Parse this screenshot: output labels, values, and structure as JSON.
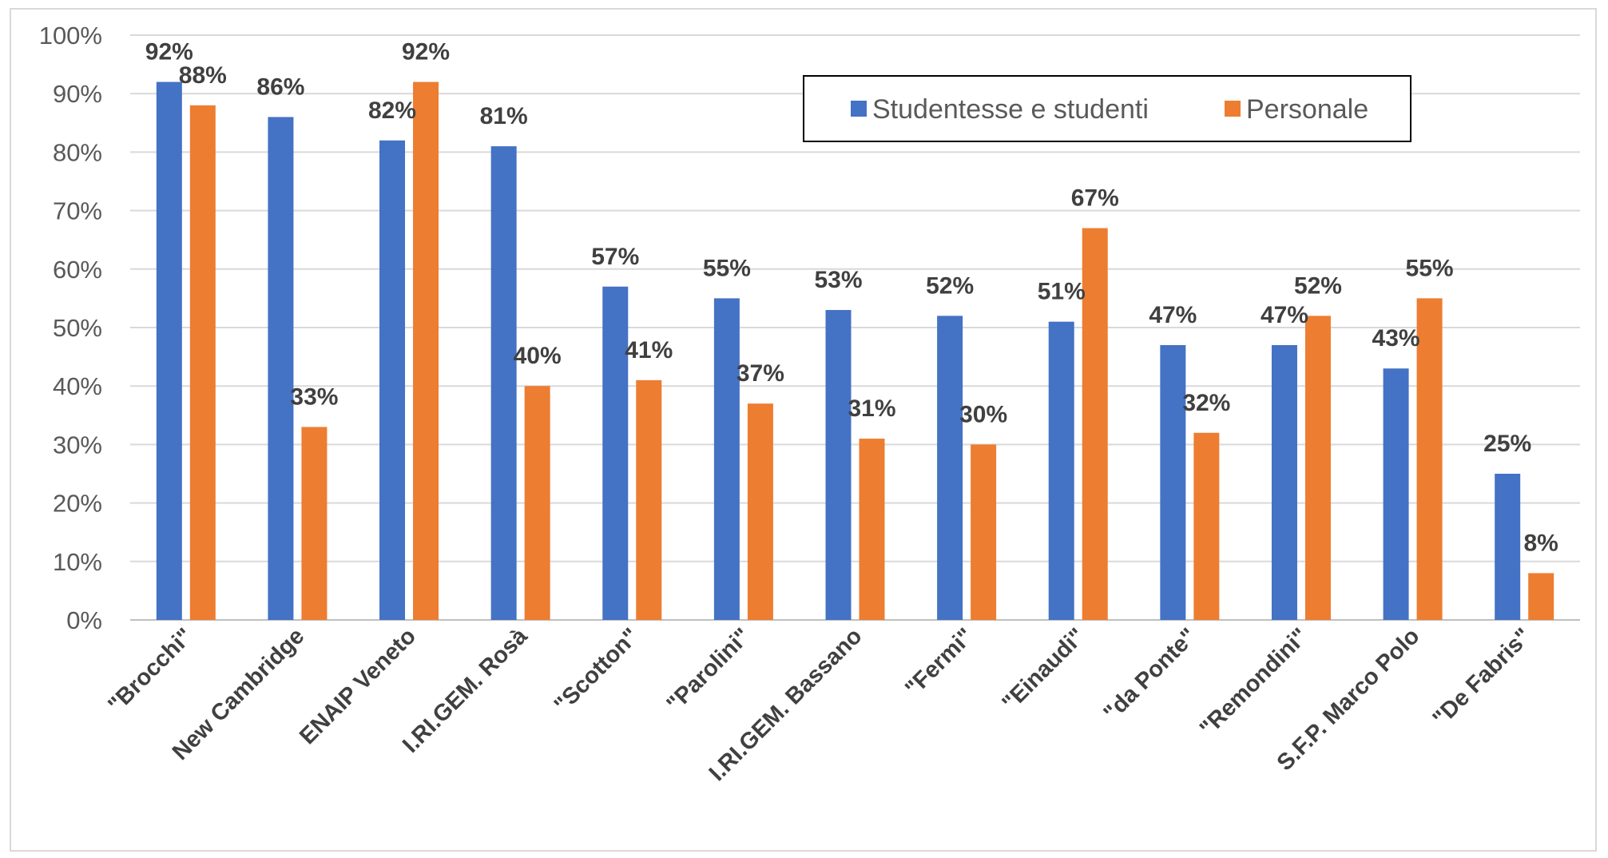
{
  "chart_data": {
    "type": "bar",
    "categories": [
      "\"Brocchi\"",
      "New Cambridge",
      "ENAIP Veneto",
      "I.RI.GEM. Rosà",
      "\"Scotton\"",
      "\"Parolini\"",
      "I.RI.GEM. Bassano",
      "\"Fermi\"",
      "\"Einaudi\"",
      "\"da Ponte\"",
      "\"Remondini\"",
      "S.F.P. Marco Polo",
      "\"De Fabris\""
    ],
    "series": [
      {
        "name": "Studentesse e studenti",
        "color": "#4472c4",
        "values": [
          92,
          86,
          82,
          81,
          57,
          55,
          53,
          52,
          51,
          47,
          47,
          43,
          25
        ],
        "labels": [
          "92%",
          "86%",
          "82%",
          "81%",
          "57%",
          "55%",
          "53%",
          "52%",
          "51%",
          "47%",
          "47%",
          "43%",
          "25%"
        ]
      },
      {
        "name": "Personale",
        "color": "#ed7d31",
        "values": [
          88,
          33,
          92,
          40,
          41,
          37,
          31,
          30,
          67,
          32,
          52,
          55,
          8
        ],
        "labels": [
          "88%",
          "33%",
          "92%",
          "40%",
          "41%",
          "37%",
          "31%",
          "30%",
          "67%",
          "32%",
          "52%",
          "55%",
          "8%"
        ]
      }
    ],
    "ylim": [
      0,
      100
    ],
    "yticks": [
      "0%",
      "10%",
      "20%",
      "30%",
      "40%",
      "50%",
      "60%",
      "70%",
      "80%",
      "90%",
      "100%"
    ],
    "grid": true,
    "legend_position": "top-right",
    "xlabel": "",
    "ylabel": ""
  }
}
